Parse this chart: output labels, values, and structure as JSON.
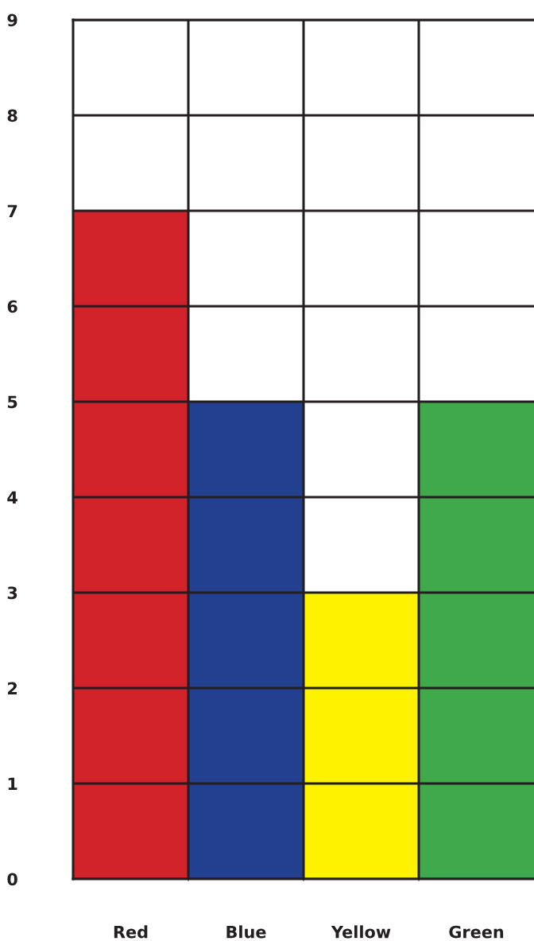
{
  "chart_data": {
    "type": "bar",
    "categories": [
      "Red",
      "Blue",
      "Yellow",
      "Green"
    ],
    "values": [
      7,
      5,
      3,
      5
    ],
    "colors": [
      "#d2232a",
      "#233f8f",
      "#fff200",
      "#3fa94b"
    ],
    "ylim": [
      0,
      9
    ],
    "yticks": [
      0,
      1,
      2,
      3,
      4,
      5,
      6,
      7,
      8,
      9
    ],
    "grid": true
  }
}
